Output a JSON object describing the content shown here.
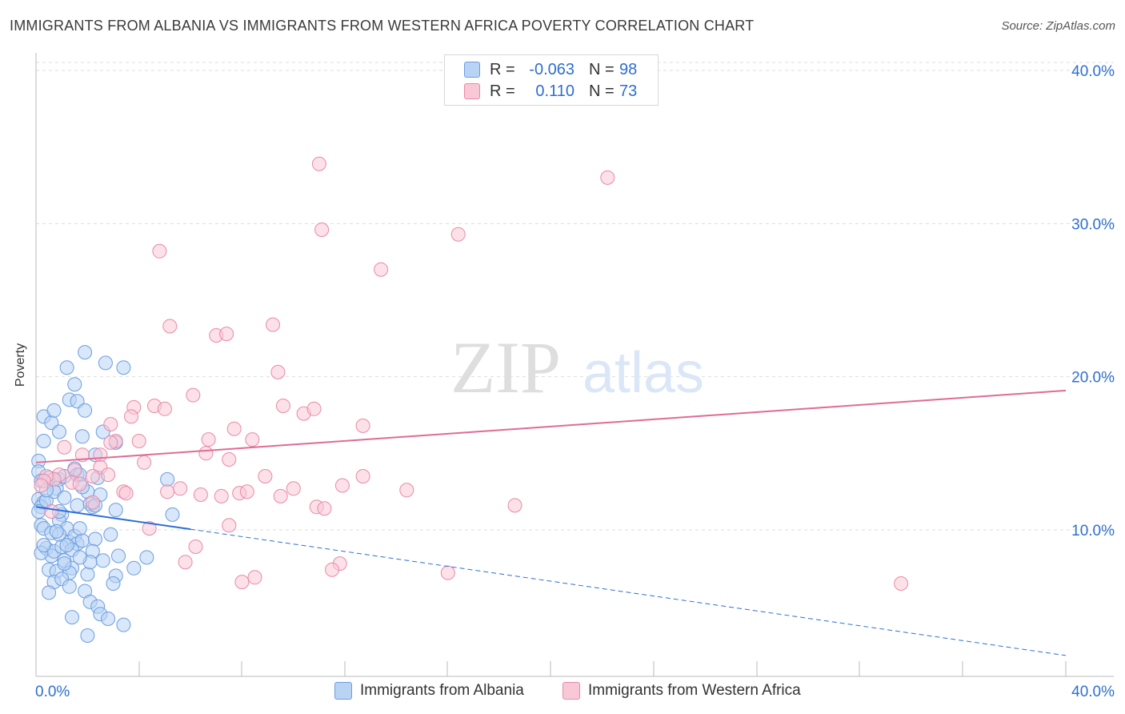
{
  "header": {
    "title": "IMMIGRANTS FROM ALBANIA VS IMMIGRANTS FROM WESTERN AFRICA POVERTY CORRELATION CHART",
    "source": "Source: ZipAtlas.com"
  },
  "legend": {
    "series1": {
      "r_label": "R =",
      "r_value": "-0.063",
      "n_label": "N =",
      "n_value": "98"
    },
    "series2": {
      "r_label": "R =",
      "r_value": "0.110",
      "n_label": "N =",
      "n_value": "73"
    }
  },
  "watermark": {
    "part1": "ZIP",
    "part2": "atlas"
  },
  "colors": {
    "blue_fill": "#b8d3f4",
    "blue_stroke": "#6d9de0",
    "blue_line": "#2f6fd6",
    "pink_fill": "#f9c8d7",
    "pink_stroke": "#e88aa8",
    "pink_line": "#e06b94",
    "tick_label": "#2e6fd0",
    "grid": "#dddddd"
  },
  "chart_data": {
    "type": "scatter",
    "title": "IMMIGRANTS FROM ALBANIA VS IMMIGRANTS FROM WESTERN AFRICA POVERTY CORRELATION CHART",
    "xlabel": "",
    "ylabel": "Poverty",
    "xlim": [
      0,
      40
    ],
    "ylim": [
      0,
      42
    ],
    "x_tick_labels": [
      {
        "value": 0,
        "label": "0.0%"
      },
      {
        "value": 40,
        "label": "40.0%"
      }
    ],
    "y_tick_labels": [
      {
        "value": 10,
        "label": "10.0%"
      },
      {
        "value": 20,
        "label": "20.0%"
      },
      {
        "value": 30,
        "label": "30.0%"
      },
      {
        "value": 40,
        "label": "40.0%"
      }
    ],
    "grid": true,
    "series": [
      {
        "name": "Immigrants from Albania",
        "color": "blue",
        "trend": {
          "x": [
            0,
            40
          ],
          "y": [
            11.5,
            1.8
          ],
          "solid_until": 6
        },
        "points": [
          [
            0.1,
            14.5
          ],
          [
            0.1,
            13.8
          ],
          [
            0.2,
            13.2
          ],
          [
            0.1,
            12.0
          ],
          [
            0.3,
            11.8
          ],
          [
            0.2,
            11.5
          ],
          [
            0.1,
            11.2
          ],
          [
            0.4,
            11.9
          ],
          [
            0.2,
            10.3
          ],
          [
            0.3,
            10.1
          ],
          [
            0.3,
            17.4
          ],
          [
            0.3,
            15.8
          ],
          [
            0.6,
            17.0
          ],
          [
            0.7,
            17.8
          ],
          [
            0.9,
            16.4
          ],
          [
            1.2,
            20.6
          ],
          [
            1.3,
            18.5
          ],
          [
            1.5,
            19.5
          ],
          [
            1.6,
            18.4
          ],
          [
            1.9,
            17.8
          ],
          [
            1.9,
            21.6
          ],
          [
            2.7,
            20.9
          ],
          [
            3.4,
            20.6
          ],
          [
            2.6,
            16.4
          ],
          [
            1.8,
            16.1
          ],
          [
            3.1,
            15.7
          ],
          [
            2.3,
            14.9
          ],
          [
            0.5,
            13.4
          ],
          [
            0.9,
            13.3
          ],
          [
            1.1,
            13.5
          ],
          [
            1.5,
            14.0
          ],
          [
            1.6,
            13.6
          ],
          [
            1.7,
            13.6
          ],
          [
            0.8,
            12.7
          ],
          [
            0.7,
            12.5
          ],
          [
            1.1,
            12.1
          ],
          [
            1.0,
            11.0
          ],
          [
            1.6,
            11.6
          ],
          [
            2.0,
            12.5
          ],
          [
            2.5,
            12.3
          ],
          [
            2.1,
            11.7
          ],
          [
            2.2,
            11.5
          ],
          [
            2.3,
            11.6
          ],
          [
            3.1,
            11.3
          ],
          [
            0.9,
            10.6
          ],
          [
            1.2,
            10.1
          ],
          [
            0.6,
            9.8
          ],
          [
            0.9,
            9.7
          ],
          [
            1.3,
            9.2
          ],
          [
            1.5,
            9.6
          ],
          [
            1.6,
            9.1
          ],
          [
            1.8,
            9.3
          ],
          [
            1.7,
            10.1
          ],
          [
            0.4,
            8.8
          ],
          [
            0.6,
            8.3
          ],
          [
            0.7,
            8.6
          ],
          [
            1.0,
            8.9
          ],
          [
            1.4,
            8.7
          ],
          [
            2.3,
            9.4
          ],
          [
            2.2,
            8.6
          ],
          [
            0.5,
            7.4
          ],
          [
            0.8,
            7.3
          ],
          [
            1.1,
            8.0
          ],
          [
            1.4,
            7.5
          ],
          [
            1.3,
            7.2
          ],
          [
            2.0,
            7.1
          ],
          [
            2.1,
            7.9
          ],
          [
            2.6,
            8.0
          ],
          [
            3.1,
            7.0
          ],
          [
            3.2,
            8.3
          ],
          [
            0.7,
            6.6
          ],
          [
            1.0,
            6.8
          ],
          [
            1.3,
            6.3
          ],
          [
            1.9,
            6.0
          ],
          [
            2.1,
            5.3
          ],
          [
            2.4,
            5.0
          ],
          [
            2.5,
            4.5
          ],
          [
            2.8,
            4.2
          ],
          [
            3.4,
            3.8
          ],
          [
            1.4,
            4.3
          ],
          [
            2.0,
            3.1
          ],
          [
            0.5,
            5.9
          ],
          [
            3.0,
            6.5
          ],
          [
            3.8,
            7.5
          ],
          [
            4.3,
            8.2
          ],
          [
            5.1,
            13.3
          ],
          [
            5.3,
            11.0
          ],
          [
            0.2,
            8.5
          ],
          [
            0.3,
            9.0
          ],
          [
            0.4,
            12.6
          ],
          [
            0.9,
            11.2
          ],
          [
            1.8,
            12.8
          ],
          [
            2.4,
            13.4
          ],
          [
            1.2,
            9.0
          ],
          [
            0.8,
            9.9
          ],
          [
            1.1,
            7.8
          ],
          [
            1.7,
            8.2
          ],
          [
            2.9,
            9.7
          ]
        ]
      },
      {
        "name": "Immigrants from Western Africa",
        "color": "pink",
        "trend": {
          "x": [
            0,
            40
          ],
          "y": [
            14.4,
            19.1
          ],
          "solid_until": 40
        },
        "points": [
          [
            11.0,
            33.9
          ],
          [
            22.2,
            33.0
          ],
          [
            11.1,
            29.6
          ],
          [
            16.4,
            29.3
          ],
          [
            4.8,
            28.2
          ],
          [
            13.4,
            27.0
          ],
          [
            5.2,
            23.3
          ],
          [
            7.0,
            22.7
          ],
          [
            7.4,
            22.8
          ],
          [
            9.2,
            23.4
          ],
          [
            9.4,
            20.3
          ],
          [
            6.1,
            18.8
          ],
          [
            3.8,
            18.0
          ],
          [
            4.6,
            18.1
          ],
          [
            5.0,
            17.9
          ],
          [
            3.7,
            17.4
          ],
          [
            9.6,
            18.1
          ],
          [
            10.4,
            17.6
          ],
          [
            10.8,
            17.9
          ],
          [
            12.7,
            16.8
          ],
          [
            7.7,
            16.6
          ],
          [
            8.4,
            15.9
          ],
          [
            6.7,
            15.9
          ],
          [
            4.0,
            15.8
          ],
          [
            3.1,
            15.8
          ],
          [
            2.9,
            15.7
          ],
          [
            2.9,
            16.9
          ],
          [
            1.1,
            15.4
          ],
          [
            1.8,
            14.9
          ],
          [
            2.5,
            14.9
          ],
          [
            6.6,
            15.0
          ],
          [
            7.5,
            14.6
          ],
          [
            4.2,
            14.4
          ],
          [
            2.5,
            14.1
          ],
          [
            1.5,
            13.9
          ],
          [
            0.9,
            13.6
          ],
          [
            0.7,
            13.3
          ],
          [
            0.4,
            13.5
          ],
          [
            0.3,
            13.2
          ],
          [
            0.2,
            12.9
          ],
          [
            2.8,
            13.6
          ],
          [
            1.4,
            13.1
          ],
          [
            8.9,
            13.5
          ],
          [
            12.7,
            13.5
          ],
          [
            3.4,
            12.5
          ],
          [
            3.5,
            12.4
          ],
          [
            5.1,
            12.5
          ],
          [
            5.6,
            12.7
          ],
          [
            6.4,
            12.3
          ],
          [
            7.2,
            12.2
          ],
          [
            7.9,
            12.4
          ],
          [
            8.2,
            12.5
          ],
          [
            9.5,
            12.2
          ],
          [
            10.0,
            12.7
          ],
          [
            11.9,
            12.9
          ],
          [
            14.4,
            12.6
          ],
          [
            10.9,
            11.5
          ],
          [
            11.2,
            11.4
          ],
          [
            18.6,
            11.6
          ],
          [
            7.5,
            10.3
          ],
          [
            4.4,
            10.1
          ],
          [
            6.2,
            8.9
          ],
          [
            5.8,
            7.9
          ],
          [
            11.8,
            7.8
          ],
          [
            11.5,
            7.4
          ],
          [
            16.0,
            7.2
          ],
          [
            8.5,
            6.9
          ],
          [
            8.0,
            6.6
          ],
          [
            33.6,
            6.5
          ],
          [
            2.2,
            13.5
          ],
          [
            1.7,
            13.0
          ],
          [
            0.6,
            11.2
          ],
          [
            2.2,
            11.8
          ]
        ]
      }
    ]
  },
  "bottom_legend": [
    {
      "label": "Immigrants from Albania"
    },
    {
      "label": "Immigrants from Western Africa"
    }
  ]
}
